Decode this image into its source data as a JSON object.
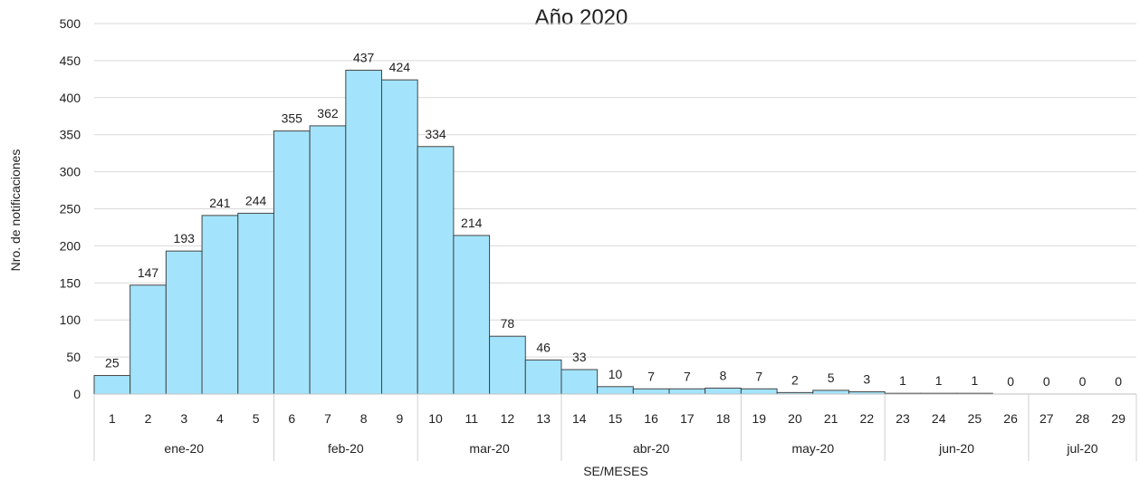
{
  "chart_data": {
    "type": "bar",
    "title": "Año 2020",
    "xlabel": "SE/MESES",
    "ylabel": "Nro. de notificaciones",
    "ylim": [
      0,
      500
    ],
    "yticks": [
      0,
      50,
      100,
      150,
      200,
      250,
      300,
      350,
      400,
      450,
      500
    ],
    "grid": true,
    "legend": "none",
    "bar_color": "#A3E4FC",
    "bar_edge_color": "#444444",
    "categories": [
      "1",
      "2",
      "3",
      "4",
      "5",
      "6",
      "7",
      "8",
      "9",
      "10",
      "11",
      "12",
      "13",
      "14",
      "15",
      "16",
      "17",
      "18",
      "19",
      "20",
      "21",
      "22",
      "23",
      "24",
      "25",
      "26",
      "27",
      "28",
      "29"
    ],
    "values": [
      25,
      147,
      193,
      241,
      244,
      355,
      362,
      437,
      424,
      334,
      214,
      78,
      46,
      33,
      10,
      7,
      7,
      8,
      7,
      2,
      5,
      3,
      1,
      1,
      1,
      0,
      0,
      0,
      0
    ],
    "month_groups": [
      {
        "label": "ene-20",
        "start": 0,
        "count": 5
      },
      {
        "label": "feb-20",
        "start": 5,
        "count": 4
      },
      {
        "label": "mar-20",
        "start": 9,
        "count": 4
      },
      {
        "label": "abr-20",
        "start": 13,
        "count": 5
      },
      {
        "label": "may-20",
        "start": 18,
        "count": 4
      },
      {
        "label": "jun-20",
        "start": 22,
        "count": 4
      },
      {
        "label": "jul-20",
        "start": 26,
        "count": 3
      }
    ]
  }
}
